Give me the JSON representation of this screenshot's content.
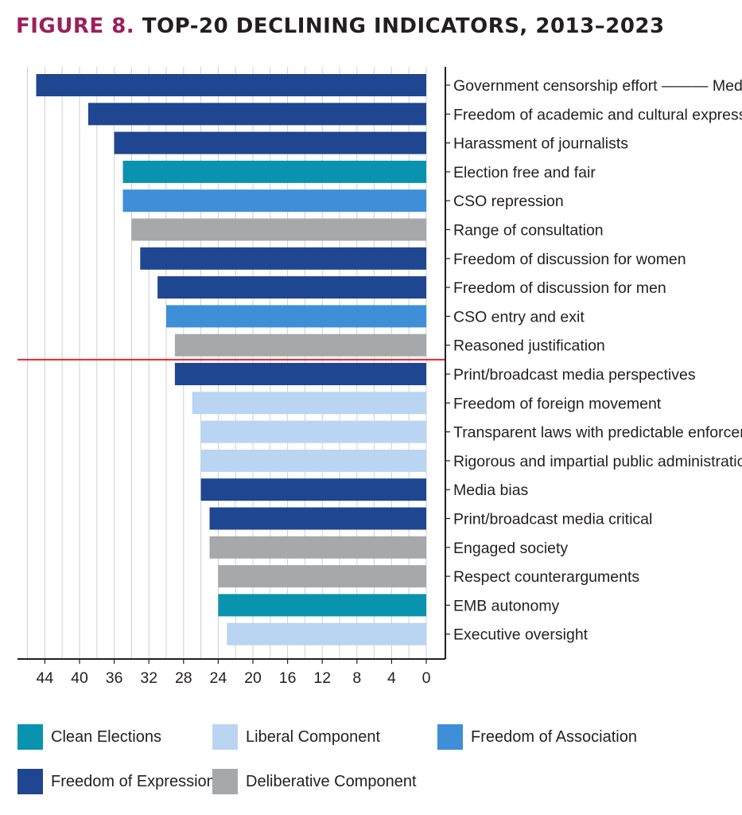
{
  "title": {
    "prefix": "FIGURE 8.",
    "text": "TOP-20 DECLINING INDICATORS, 2013–2023"
  },
  "colors": {
    "Clean Elections": "#0a93ae",
    "Liberal Component": "#b9d5f2",
    "Freedom of Association": "#3f8ed8",
    "Freedom of Expression": "#1f4690",
    "Deliberative Component": "#a7a8aa",
    "cutoff_line": "#e8242b"
  },
  "legend": [
    {
      "label": "Clean Elections",
      "color": "#0a93ae"
    },
    {
      "label": "Liberal Component",
      "color": "#b9d5f2"
    },
    {
      "label": "Freedom of Association",
      "color": "#3f8ed8"
    },
    {
      "label": "Freedom of Expression",
      "color": "#1f4690"
    },
    {
      "label": "Deliberative Component",
      "color": "#a7a8aa"
    }
  ],
  "chart_data": {
    "type": "bar",
    "orientation": "horizontal",
    "x_direction": "reversed",
    "xlim": [
      0,
      46
    ],
    "xticks": [
      44,
      40,
      36,
      32,
      28,
      24,
      20,
      16,
      12,
      8,
      4,
      0
    ],
    "grid": true,
    "cutoff_after_index": 9,
    "bars": [
      {
        "label": "Government censorship effort ——— Media",
        "value": 45,
        "series": "Freedom of Expression"
      },
      {
        "label": "Freedom of academic and cultural expression",
        "value": 39,
        "series": "Freedom of Expression"
      },
      {
        "label": "Harassment of journalists",
        "value": 36,
        "series": "Freedom of Expression"
      },
      {
        "label": "Election free and fair",
        "value": 35,
        "series": "Clean Elections"
      },
      {
        "label": "CSO repression",
        "value": 35,
        "series": "Freedom of Association"
      },
      {
        "label": "Range of consultation",
        "value": 34,
        "series": "Deliberative Component"
      },
      {
        "label": "Freedom of discussion for women",
        "value": 33,
        "series": "Freedom of Expression"
      },
      {
        "label": "Freedom of discussion for men",
        "value": 31,
        "series": "Freedom of Expression"
      },
      {
        "label": "CSO entry and exit",
        "value": 30,
        "series": "Freedom of Association"
      },
      {
        "label": "Reasoned justification",
        "value": 29,
        "series": "Deliberative Component"
      },
      {
        "label": "Print/broadcast media perspectives",
        "value": 29,
        "series": "Freedom of Expression"
      },
      {
        "label": "Freedom of foreign movement",
        "value": 27,
        "series": "Liberal Component"
      },
      {
        "label": "Transparent laws with predictable enforceme",
        "value": 26,
        "series": "Liberal Component"
      },
      {
        "label": "Rigorous and impartial public administration",
        "value": 26,
        "series": "Liberal Component"
      },
      {
        "label": "Media bias",
        "value": 26,
        "series": "Freedom of Expression"
      },
      {
        "label": "Print/broadcast media critical",
        "value": 25,
        "series": "Freedom of Expression"
      },
      {
        "label": "Engaged society",
        "value": 25,
        "series": "Deliberative Component"
      },
      {
        "label": "Respect counterarguments",
        "value": 24,
        "series": "Deliberative Component"
      },
      {
        "label": "EMB autonomy",
        "value": 24,
        "series": "Clean Elections"
      },
      {
        "label": "Executive oversight",
        "value": 23,
        "series": "Liberal Component"
      }
    ]
  }
}
